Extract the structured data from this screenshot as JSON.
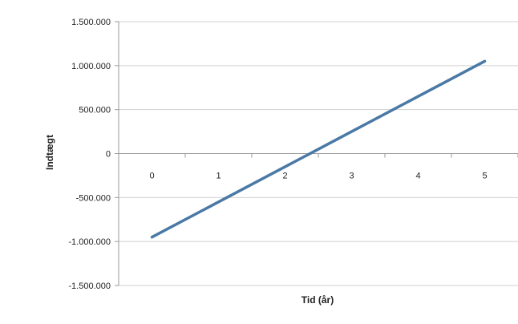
{
  "chart_data": {
    "type": "line",
    "title": "",
    "xlabel": "Tid (år)",
    "ylabel": "Indtægt",
    "x": [
      0,
      1,
      2,
      3,
      4,
      5
    ],
    "x_tick_labels": [
      "0",
      "1",
      "2",
      "3",
      "4",
      "5"
    ],
    "y_tick_values": [
      1500000,
      1000000,
      500000,
      0,
      -500000,
      -1000000,
      -1500000
    ],
    "y_tick_labels": [
      "1.500.000",
      "1.000.000",
      "500.000",
      "0",
      "-500.000",
      "-1.000.000",
      "-1.500.000"
    ],
    "xlim": [
      -0.5,
      5.5
    ],
    "ylim": [
      -1500000,
      1500000
    ],
    "grid": "horizontal",
    "series": [
      {
        "values": [
          -950000,
          -550000,
          -150000,
          250000,
          650000,
          1050000
        ],
        "color": "#4a79a5"
      }
    ]
  }
}
